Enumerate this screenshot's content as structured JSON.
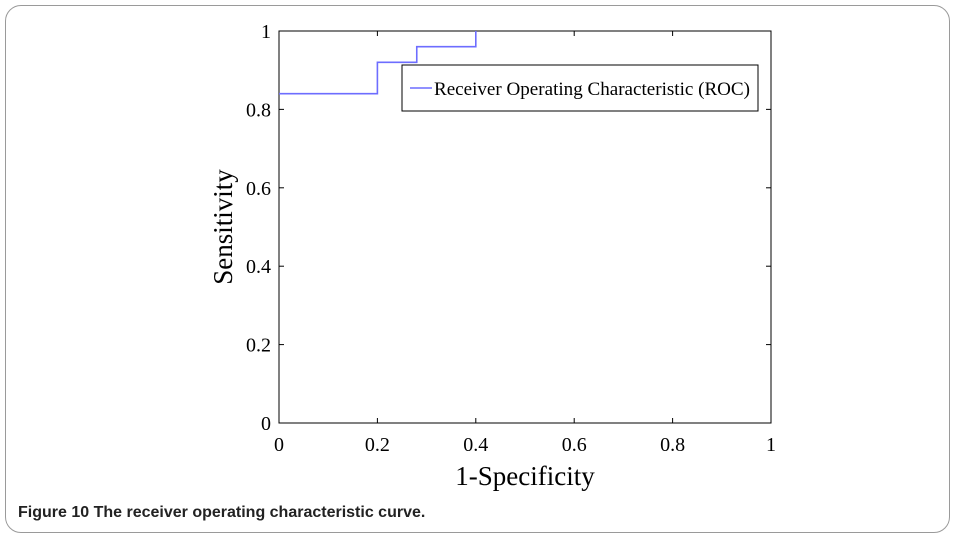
{
  "chart_data": {
    "type": "line",
    "xlabel": "1-Specificity",
    "ylabel": "Sensitivity",
    "xlim": [
      0,
      1
    ],
    "ylim": [
      0,
      1
    ],
    "x_ticks": [
      "0",
      "0.2",
      "0.4",
      "0.6",
      "0.8",
      "1"
    ],
    "y_ticks": [
      "0",
      "0.2",
      "0.4",
      "0.6",
      "0.8",
      "1"
    ],
    "grid": false,
    "legend_position": "top-right",
    "series": [
      {
        "name": "Receiver Operating Characteristic (ROC)",
        "color": "#6d6dff",
        "step": true,
        "x": [
          0,
          0.2,
          0.2,
          0.28,
          0.28,
          0.4,
          0.4
        ],
        "y": [
          0.84,
          0.84,
          0.92,
          0.92,
          0.96,
          0.96,
          1.0
        ]
      }
    ]
  },
  "caption": {
    "label": "Figure 10",
    "text": "The receiver operating characteristic curve."
  }
}
